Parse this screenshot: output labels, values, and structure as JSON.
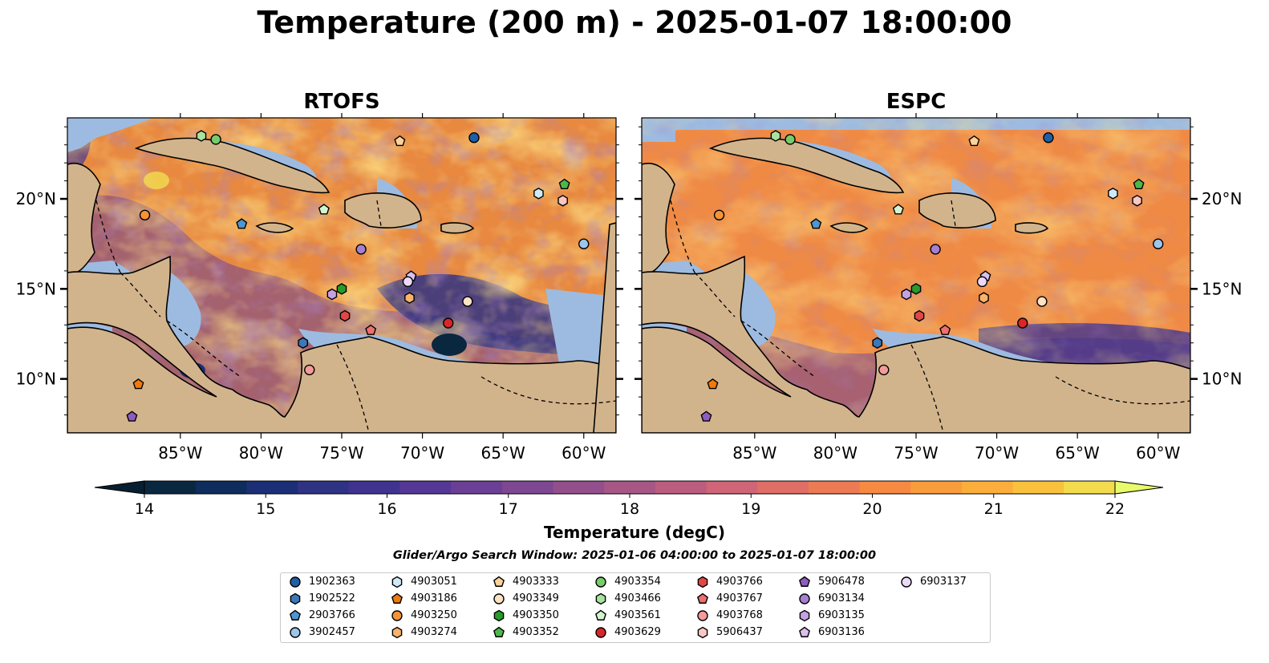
{
  "title": "Temperature (200 m) - 2025-01-07 18:00:00",
  "panels": [
    {
      "name": "RTOFS"
    },
    {
      "name": "ESPC"
    }
  ],
  "axes": {
    "lon_ticks": [
      "85°W",
      "80°W",
      "75°W",
      "70°W",
      "65°W",
      "60°W"
    ],
    "lat_ticks": [
      "20°N",
      "15°N",
      "10°N"
    ]
  },
  "colorbar": {
    "ticks": [
      "14",
      "15",
      "16",
      "17",
      "18",
      "19",
      "20",
      "21",
      "22"
    ],
    "label": "Temperature (degC)",
    "range": [
      14,
      22
    ],
    "colors": [
      "#0a2740",
      "#0e2c5c",
      "#1c2f76",
      "#2f3384",
      "#40338f",
      "#553895",
      "#6b3f96",
      "#7e4792",
      "#924f8c",
      "#a75686",
      "#bb5d7f",
      "#cf6577",
      "#df6e66",
      "#ec7a54",
      "#f68a43",
      "#f99c3b",
      "#fbae3b",
      "#f9c13d",
      "#f2dc4e"
    ],
    "extend_under": "#071f30",
    "extend_over": "#e8fb6a"
  },
  "search_window": "Glider/Argo Search Window: 2025-01-06 04:00:00 to 2025-01-07 18:00:00",
  "colors": {
    "land": "#d2b48c",
    "shelf": "#9dbbe0",
    "deep_ocean": "#052033",
    "warm_base": "#f0883e",
    "cool_base": "#6a3f96"
  },
  "legend": [
    {
      "id": "1902363",
      "marker": "circle",
      "color": "#1f5fa8"
    },
    {
      "id": "1902522",
      "marker": "hexagon",
      "color": "#3a78b8"
    },
    {
      "id": "2903766",
      "marker": "pentagon",
      "color": "#4e96cf"
    },
    {
      "id": "3902457",
      "marker": "circle",
      "color": "#9cc6ea"
    },
    {
      "id": "4903051",
      "marker": "hexagon",
      "color": "#cfe9f7"
    },
    {
      "id": "4903186",
      "marker": "pentagon",
      "color": "#f07a0c"
    },
    {
      "id": "4903250",
      "marker": "circle",
      "color": "#f59435"
    },
    {
      "id": "4903274",
      "marker": "hexagon",
      "color": "#fab36b"
    },
    {
      "id": "4903333",
      "marker": "pentagon",
      "color": "#fcd19a"
    },
    {
      "id": "4903349",
      "marker": "circle",
      "color": "#fde2c4"
    },
    {
      "id": "4903350",
      "marker": "hexagon",
      "color": "#2a9a2a"
    },
    {
      "id": "4903352",
      "marker": "pentagon",
      "color": "#4cb84a"
    },
    {
      "id": "4903354",
      "marker": "circle",
      "color": "#78cb6c"
    },
    {
      "id": "4903466",
      "marker": "hexagon",
      "color": "#a8e2a0"
    },
    {
      "id": "4903561",
      "marker": "pentagon",
      "color": "#d4f4cf"
    },
    {
      "id": "4903629",
      "marker": "circle",
      "color": "#d92626"
    },
    {
      "id": "4903766",
      "marker": "hexagon",
      "color": "#e04848"
    },
    {
      "id": "4903767",
      "marker": "pentagon",
      "color": "#ec7070"
    },
    {
      "id": "4903768",
      "marker": "circle",
      "color": "#f59a9a"
    },
    {
      "id": "5906437",
      "marker": "hexagon",
      "color": "#f9c8c2"
    },
    {
      "id": "5906478",
      "marker": "pentagon",
      "color": "#8e5cc0"
    },
    {
      "id": "6903134",
      "marker": "circle",
      "color": "#a57fd0"
    },
    {
      "id": "6903135",
      "marker": "hexagon",
      "color": "#c4a2e2"
    },
    {
      "id": "6903136",
      "marker": "pentagon",
      "color": "#d9c0ef"
    },
    {
      "id": "6903137",
      "marker": "circle",
      "color": "#ead9f7"
    }
  ],
  "floats": [
    {
      "id": "1902363",
      "lon": -66.8,
      "lat": 23.4
    },
    {
      "id": "1902522",
      "lon": -77.4,
      "lat": 12.0
    },
    {
      "id": "2903766",
      "lon": -81.2,
      "lat": 18.6
    },
    {
      "id": "3902457",
      "lon": -60.0,
      "lat": 17.5
    },
    {
      "id": "4903051",
      "lon": -62.8,
      "lat": 20.3
    },
    {
      "id": "4903186",
      "lon": -87.6,
      "lat": 9.7
    },
    {
      "id": "4903250",
      "lon": -87.2,
      "lat": 19.1
    },
    {
      "id": "4903274",
      "lon": -70.8,
      "lat": 14.5
    },
    {
      "id": "4903333",
      "lon": -71.4,
      "lat": 23.2
    },
    {
      "id": "4903349",
      "lon": -67.2,
      "lat": 14.3
    },
    {
      "id": "4903350",
      "lon": -75.0,
      "lat": 15.0
    },
    {
      "id": "4903352",
      "lon": -61.2,
      "lat": 20.8
    },
    {
      "id": "4903354",
      "lon": -82.8,
      "lat": 23.3
    },
    {
      "id": "4903466",
      "lon": -83.7,
      "lat": 23.5
    },
    {
      "id": "4903561",
      "lon": -76.1,
      "lat": 19.4
    },
    {
      "id": "4903629",
      "lon": -68.4,
      "lat": 13.1
    },
    {
      "id": "4903766",
      "lon": -74.8,
      "lat": 13.5
    },
    {
      "id": "4903767",
      "lon": -73.2,
      "lat": 12.7
    },
    {
      "id": "4903768",
      "lon": -77.0,
      "lat": 10.5
    },
    {
      "id": "5906437",
      "lon": -61.3,
      "lat": 19.9
    },
    {
      "id": "5906478",
      "lon": -88.0,
      "lat": 7.9
    },
    {
      "id": "6903134",
      "lon": -73.8,
      "lat": 17.2
    },
    {
      "id": "6903135",
      "lon": -75.6,
      "lat": 14.7
    },
    {
      "id": "6903136",
      "lon": -70.7,
      "lat": 15.7
    },
    {
      "id": "6903137",
      "lon": -70.9,
      "lat": 15.4
    }
  ]
}
